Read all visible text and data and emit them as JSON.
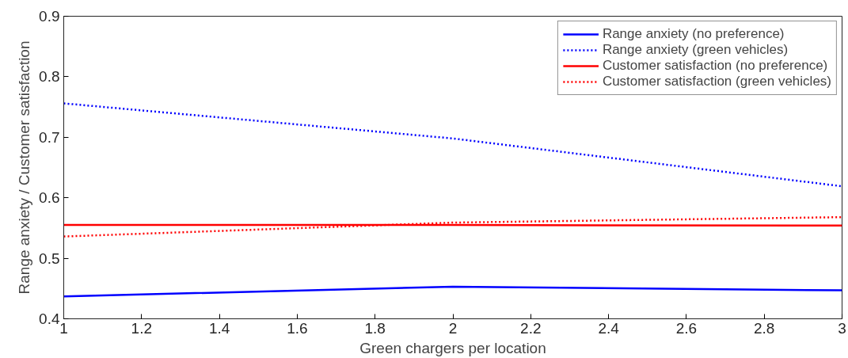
{
  "chart_data": {
    "type": "line",
    "xlabel": "Green chargers per location",
    "ylabel": "Range anxiety / Customer satisfaction",
    "x": [
      1,
      2,
      3
    ],
    "series": [
      {
        "name": "Range anxiety (no preference)",
        "color": "#0000ff",
        "line_style": "solid",
        "values": [
          0.437,
          0.453,
          0.447
        ]
      },
      {
        "name": "Range anxiety (green vehicles)",
        "color": "#0000ff",
        "line_style": "dotted",
        "values": [
          0.756,
          0.698,
          0.619
        ]
      },
      {
        "name": "Customer satisfaction (no preference)",
        "color": "#ff0000",
        "line_style": "solid",
        "values": [
          0.555,
          0.555,
          0.554
        ]
      },
      {
        "name": "Customer satisfaction (green vehicles)",
        "color": "#ff0000",
        "line_style": "dotted",
        "values": [
          0.536,
          0.559,
          0.568
        ]
      }
    ],
    "xlim": [
      1,
      3
    ],
    "xticks": [
      1,
      1.2,
      1.4,
      1.6,
      1.8,
      2,
      2.2,
      2.4,
      2.6,
      2.8,
      3
    ],
    "ylim": [
      0.4,
      0.9
    ],
    "yticks": [
      0.4,
      0.5,
      0.6,
      0.7,
      0.8,
      0.9
    ],
    "grid": false,
    "legend": "top right",
    "marker": "none"
  }
}
